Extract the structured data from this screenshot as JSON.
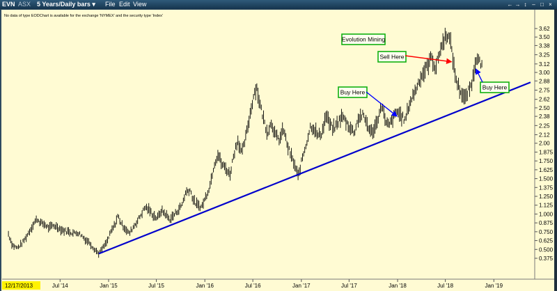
{
  "window": {
    "symbol": "EVN",
    "exchange": "ASX",
    "period": "5 Years/Daily bars ▾",
    "menu": [
      "File",
      "Edit",
      "View"
    ],
    "controls": [
      "←",
      "→",
      "↕",
      "–",
      "□",
      "×"
    ]
  },
  "notice": "No data of type EODChart is available for the exchange 'NYMEX' and the security type 'Index'",
  "chart_data": {
    "type": "line",
    "title": "Evolution Mining",
    "xlabel": "",
    "ylabel": "",
    "start_date_label": "12/17/2013",
    "x_tick_labels": [
      "Jul '14",
      "Jan '15",
      "Jul '15",
      "Jan '16",
      "Jul '16",
      "Jan '17",
      "Jul '17",
      "Jan '18",
      "Jul '18",
      "Jan '19"
    ],
    "y_tick_labels": [
      0.375,
      0.5,
      0.625,
      0.75,
      0.875,
      1.0,
      1.125,
      1.25,
      1.375,
      1.5,
      1.625,
      1.75,
      1.875,
      2.0,
      2.12,
      2.25,
      2.38,
      2.5,
      2.62,
      2.75,
      2.88,
      3.0,
      3.12,
      3.25,
      3.38,
      3.5,
      3.62
    ],
    "ylim": [
      0.3,
      3.72
    ],
    "y_axis_position": "right",
    "grid": false,
    "series": [
      {
        "color": "#000000",
        "style": "daily price bars",
        "points": [
          [
            "2013-12-17",
            0.72
          ],
          [
            "2014-01-01",
            0.56
          ],
          [
            "2014-01-20",
            0.52
          ],
          [
            "2014-02-05",
            0.58
          ],
          [
            "2014-02-20",
            0.66
          ],
          [
            "2014-03-10",
            0.78
          ],
          [
            "2014-03-25",
            0.88
          ],
          [
            "2014-04-05",
            0.93
          ],
          [
            "2014-04-20",
            0.87
          ],
          [
            "2014-05-05",
            0.85
          ],
          [
            "2014-05-20",
            0.8
          ],
          [
            "2014-06-05",
            0.84
          ],
          [
            "2014-06-20",
            0.82
          ],
          [
            "2014-07-05",
            0.78
          ],
          [
            "2014-07-20",
            0.76
          ],
          [
            "2014-08-05",
            0.75
          ],
          [
            "2014-08-20",
            0.73
          ],
          [
            "2014-09-05",
            0.74
          ],
          [
            "2014-09-20",
            0.7
          ],
          [
            "2014-10-05",
            0.64
          ],
          [
            "2014-10-20",
            0.6
          ],
          [
            "2014-11-05",
            0.52
          ],
          [
            "2014-11-15",
            0.48
          ],
          [
            "2014-11-25",
            0.44
          ],
          [
            "2014-12-10",
            0.52
          ],
          [
            "2014-12-25",
            0.6
          ],
          [
            "2015-01-10",
            0.75
          ],
          [
            "2015-01-25",
            0.85
          ],
          [
            "2015-02-05",
            0.98
          ],
          [
            "2015-02-20",
            0.85
          ],
          [
            "2015-03-05",
            0.8
          ],
          [
            "2015-03-20",
            0.72
          ],
          [
            "2015-04-05",
            0.82
          ],
          [
            "2015-04-20",
            0.9
          ],
          [
            "2015-05-05",
            1.0
          ],
          [
            "2015-05-20",
            1.1
          ],
          [
            "2015-06-05",
            1.05
          ],
          [
            "2015-06-20",
            0.98
          ],
          [
            "2015-07-05",
            0.94
          ],
          [
            "2015-07-20",
            1.05
          ],
          [
            "2015-08-05",
            1.0
          ],
          [
            "2015-08-20",
            0.92
          ],
          [
            "2015-09-05",
            0.98
          ],
          [
            "2015-09-20",
            1.05
          ],
          [
            "2015-10-05",
            1.12
          ],
          [
            "2015-10-20",
            1.3
          ],
          [
            "2015-11-05",
            1.35
          ],
          [
            "2015-11-20",
            1.18
          ],
          [
            "2015-12-05",
            1.12
          ],
          [
            "2015-12-20",
            1.1
          ],
          [
            "2016-01-05",
            1.25
          ],
          [
            "2016-01-20",
            1.4
          ],
          [
            "2016-02-05",
            1.7
          ],
          [
            "2016-02-20",
            1.85
          ],
          [
            "2016-03-05",
            1.7
          ],
          [
            "2016-03-20",
            1.65
          ],
          [
            "2016-04-05",
            1.55
          ],
          [
            "2016-04-20",
            1.85
          ],
          [
            "2016-05-05",
            2.05
          ],
          [
            "2016-05-20",
            1.85
          ],
          [
            "2016-06-05",
            2.1
          ],
          [
            "2016-06-20",
            2.4
          ],
          [
            "2016-07-05",
            2.7
          ],
          [
            "2016-07-15",
            2.8
          ],
          [
            "2016-07-28",
            2.55
          ],
          [
            "2016-08-10",
            2.35
          ],
          [
            "2016-08-25",
            2.15
          ],
          [
            "2016-09-10",
            2.3
          ],
          [
            "2016-09-25",
            2.1
          ],
          [
            "2016-10-10",
            2.05
          ],
          [
            "2016-10-25",
            2.2
          ],
          [
            "2016-11-10",
            1.95
          ],
          [
            "2016-11-25",
            1.8
          ],
          [
            "2016-12-10",
            1.65
          ],
          [
            "2016-12-20",
            1.52
          ],
          [
            "2017-01-05",
            1.8
          ],
          [
            "2017-01-20",
            2.0
          ],
          [
            "2017-02-05",
            2.25
          ],
          [
            "2017-02-20",
            2.2
          ],
          [
            "2017-03-05",
            2.1
          ],
          [
            "2017-03-20",
            2.15
          ],
          [
            "2017-04-05",
            2.4
          ],
          [
            "2017-04-20",
            2.25
          ],
          [
            "2017-05-05",
            2.2
          ],
          [
            "2017-05-20",
            2.3
          ],
          [
            "2017-06-05",
            2.38
          ],
          [
            "2017-06-20",
            2.3
          ],
          [
            "2017-07-05",
            2.22
          ],
          [
            "2017-07-20",
            2.15
          ],
          [
            "2017-08-05",
            2.35
          ],
          [
            "2017-08-20",
            2.4
          ],
          [
            "2017-09-05",
            2.3
          ],
          [
            "2017-09-20",
            2.15
          ],
          [
            "2017-10-05",
            2.2
          ],
          [
            "2017-10-20",
            2.38
          ],
          [
            "2017-11-05",
            2.55
          ],
          [
            "2017-11-15",
            2.28
          ],
          [
            "2017-11-30",
            2.25
          ],
          [
            "2017-12-15",
            2.35
          ],
          [
            "2017-12-30",
            2.45
          ],
          [
            "2018-01-15",
            2.38
          ],
          [
            "2018-01-30",
            2.32
          ],
          [
            "2018-02-10",
            2.5
          ],
          [
            "2018-02-25",
            2.65
          ],
          [
            "2018-03-10",
            2.75
          ],
          [
            "2018-03-25",
            2.9
          ],
          [
            "2018-04-10",
            3.0
          ],
          [
            "2018-04-25",
            3.1
          ],
          [
            "2018-05-10",
            3.22
          ],
          [
            "2018-05-25",
            3.05
          ],
          [
            "2018-06-10",
            3.3
          ],
          [
            "2018-06-25",
            3.45
          ],
          [
            "2018-07-05",
            3.55
          ],
          [
            "2018-07-15",
            3.48
          ],
          [
            "2018-07-25",
            3.35
          ],
          [
            "2018-08-05",
            3.0
          ],
          [
            "2018-08-15",
            2.85
          ],
          [
            "2018-08-25",
            2.75
          ],
          [
            "2018-09-05",
            2.68
          ],
          [
            "2018-09-15",
            2.62
          ],
          [
            "2018-09-25",
            2.72
          ],
          [
            "2018-10-05",
            2.8
          ],
          [
            "2018-10-15",
            2.95
          ],
          [
            "2018-10-25",
            3.2
          ],
          [
            "2018-11-05",
            3.25
          ],
          [
            "2018-11-12",
            3.05
          ],
          [
            "2018-11-20",
            3.15
          ]
        ]
      }
    ],
    "trendline": {
      "color": "#0000cc",
      "from": [
        "2014-11-25",
        0.44
      ],
      "to": [
        "2019-05-20",
        2.86
      ]
    },
    "annotations": [
      {
        "text": "Evolution Mining",
        "arrow_color": "",
        "points_to": null
      },
      {
        "text": "Sell Here",
        "arrow_color": "#ff0000",
        "points_to": [
          "2018-07-25",
          3.15
        ]
      },
      {
        "text": "Buy Here",
        "arrow_color": "#0000ff",
        "points_to": [
          "2017-12-30",
          2.38
        ]
      },
      {
        "text": "Buy Here",
        "arrow_color": "#0000ff",
        "points_to": [
          "2018-10-25",
          3.05
        ]
      }
    ]
  }
}
